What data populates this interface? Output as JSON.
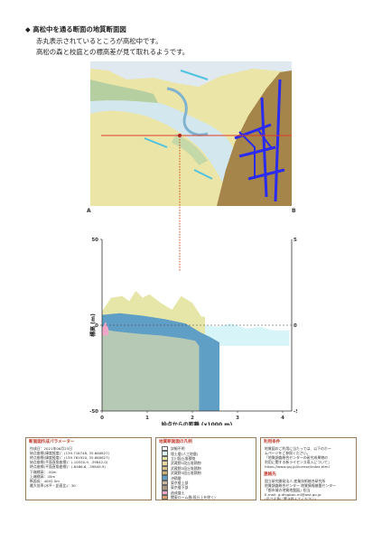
{
  "header": {
    "title": "◆ 高松中を通る断面の地質断面図",
    "line1": "赤丸表示されているところが高松中です。",
    "line2": "高松の森と校庭との標高差が見て取れるようです。"
  },
  "section_labels": {
    "a": "A",
    "b": "B"
  },
  "chart_data": {
    "type": "area",
    "title": "",
    "xlabel": "始点からの距離 (x1000 m)",
    "ylabel": "標高 (m)",
    "xlim": [
      0,
      4.2
    ],
    "ylim": [
      -50,
      50
    ],
    "x_ticks": [
      "0",
      "1",
      "2",
      "3",
      "4"
    ],
    "y_ticks": [
      "50",
      "0",
      "-50"
    ],
    "marker_x": 1.7,
    "layers": [
      {
        "name": "上総層群",
        "color": "#b6c9b4",
        "top": [
          [
            0,
            -2
          ],
          [
            0.25,
            -3.5
          ],
          [
            0.8,
            -5
          ],
          [
            1.3,
            -6
          ],
          [
            1.75,
            -7.5
          ],
          [
            2.06,
            -9
          ],
          [
            2.15,
            -12
          ]
        ]
      },
      {
        "name": "沖積層",
        "color": "#5f9fc6",
        "top": [
          [
            0,
            6
          ],
          [
            0.4,
            7
          ],
          [
            0.9,
            5.5
          ],
          [
            1.4,
            3.5
          ],
          [
            1.85,
            1
          ],
          [
            2.2,
            -4.5
          ],
          [
            2.4,
            -7
          ],
          [
            2.6,
            -10
          ]
        ]
      },
      {
        "name": "立川段丘堆積物",
        "color": "#e6e6a8",
        "top": [
          [
            0,
            8
          ],
          [
            0.2,
            16
          ],
          [
            0.45,
            17
          ],
          [
            0.6,
            14
          ],
          [
            0.75,
            20
          ],
          [
            0.9,
            16
          ],
          [
            1.05,
            18
          ],
          [
            1.3,
            13
          ],
          [
            1.55,
            9
          ],
          [
            1.75,
            17
          ],
          [
            2.0,
            13
          ],
          [
            2.2,
            5
          ],
          [
            2.28,
            5
          ]
        ]
      },
      {
        "name": "埋土層",
        "color": "#d7f4f9",
        "top": [
          [
            2.28,
            0
          ],
          [
            2.55,
            -1
          ],
          [
            2.85,
            1
          ],
          [
            3.2,
            -2
          ],
          [
            3.5,
            -1
          ],
          [
            3.8,
            -3
          ],
          [
            4.15,
            -3
          ]
        ]
      },
      {
        "name": "造成盛土",
        "color": "#f2a6c8",
        "top": [
          [
            0,
            -2
          ],
          [
            0.08,
            2
          ],
          [
            0.14,
            -2
          ]
        ]
      }
    ]
  },
  "params": {
    "title": "断面図作成パラメーター",
    "lines": [
      "作成日：2021年06月23日",
      "始点座標(緯度経度)：(139.716748, 35.660827)",
      "終点座標(緯度経度)：(139.761920, 35.660827)",
      "始点座標(平面直角座標)：(-10550.9, -39842.0)",
      "終点座標(平面直角座標)：(-6466.6, -39849.9)",
      "下端標高：-50m",
      "上端標高：45m",
      "断面長：4092.5m",
      "最大倍率(水平・鉛直比)：30"
    ]
  },
  "legend": {
    "title": "地質断面図の凡例",
    "items": [
      {
        "label": "詳細不明",
        "color": "#ffffff"
      },
      {
        "label": "埋土層(人工地層)",
        "color": "#d7f4f9"
      },
      {
        "label": "立川段丘堆積物",
        "color": "#e6e6a8"
      },
      {
        "label": "武蔵野1段丘堆積物",
        "color": "#e8d9a2"
      },
      {
        "label": "武蔵野2段丘堆積物",
        "color": "#d9c48a"
      },
      {
        "label": "武蔵野3段丘堆積物",
        "color": "#cdb276"
      },
      {
        "label": "沖積層",
        "color": "#5f9fc6"
      },
      {
        "label": "東京層上部",
        "color": "#c9b8a0"
      },
      {
        "label": "東京層下部",
        "color": "#a89880"
      },
      {
        "label": "造成盛土",
        "color": "#f2a6c8"
      },
      {
        "label": "関東ローム層(段丘上を除く)",
        "color": "#d8a070"
      },
      {
        "label": "上総層群",
        "color": "#b6c9b4"
      }
    ]
  },
  "terms": {
    "title": "利用条件",
    "lines": [
      "地質図のご利用に当たっては、以下のホー",
      "ムページをご参照ください。",
      "「地質調査総合センターの研究成果物の",
      "利用に関する新ライセンス導入について」",
      "https://www.gsj.jp/license/index.html"
    ],
    "contact_title": "連絡先",
    "contact_lines": [
      "国立研究開発法人 産業技術総合研究所",
      "地質調査総合センター 地質情報基盤センター",
      "「都市域の地質地盤図」担当",
      "E-mail: g-dhigban-ml@aist.go.jp",
      "(＠は半角に置き換えてください)"
    ]
  }
}
